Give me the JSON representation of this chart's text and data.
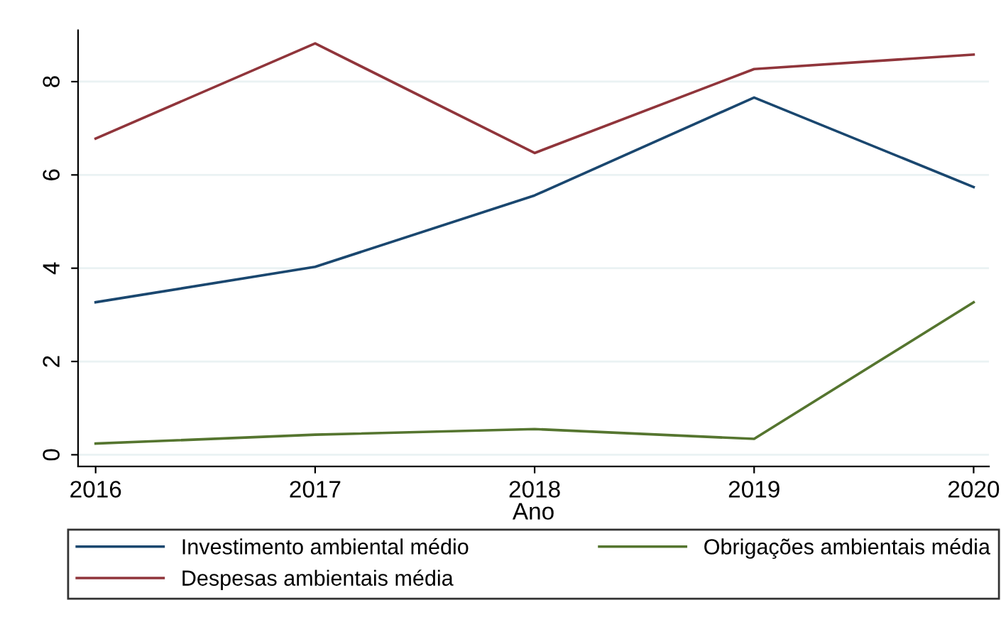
{
  "chart_data": {
    "type": "line",
    "xlabel": "Ano",
    "x": [
      2016,
      2017,
      2018,
      2019,
      2020
    ],
    "series": [
      {
        "name": "Investimento ambiental médio",
        "color": "#1a476f",
        "values": [
          3.27,
          4.03,
          5.56,
          7.66,
          5.74
        ]
      },
      {
        "name": "Despesas ambientais média",
        "color": "#90353b",
        "values": [
          6.78,
          8.82,
          6.47,
          8.27,
          8.58
        ]
      },
      {
        "name": "Obrigações ambientais média",
        "color": "#55752f",
        "values": [
          0.24,
          0.43,
          0.55,
          0.34,
          3.27
        ]
      }
    ],
    "xlim": [
      2015.92,
      2020.07
    ],
    "xticks": [
      2016,
      2017,
      2018,
      2019,
      2020
    ],
    "ylim": [
      -0.25,
      9.1
    ],
    "yticks": [
      0,
      2,
      4,
      6,
      8
    ],
    "grid": "y",
    "legend": "bottom",
    "marker": "none",
    "line_style": "solid"
  }
}
